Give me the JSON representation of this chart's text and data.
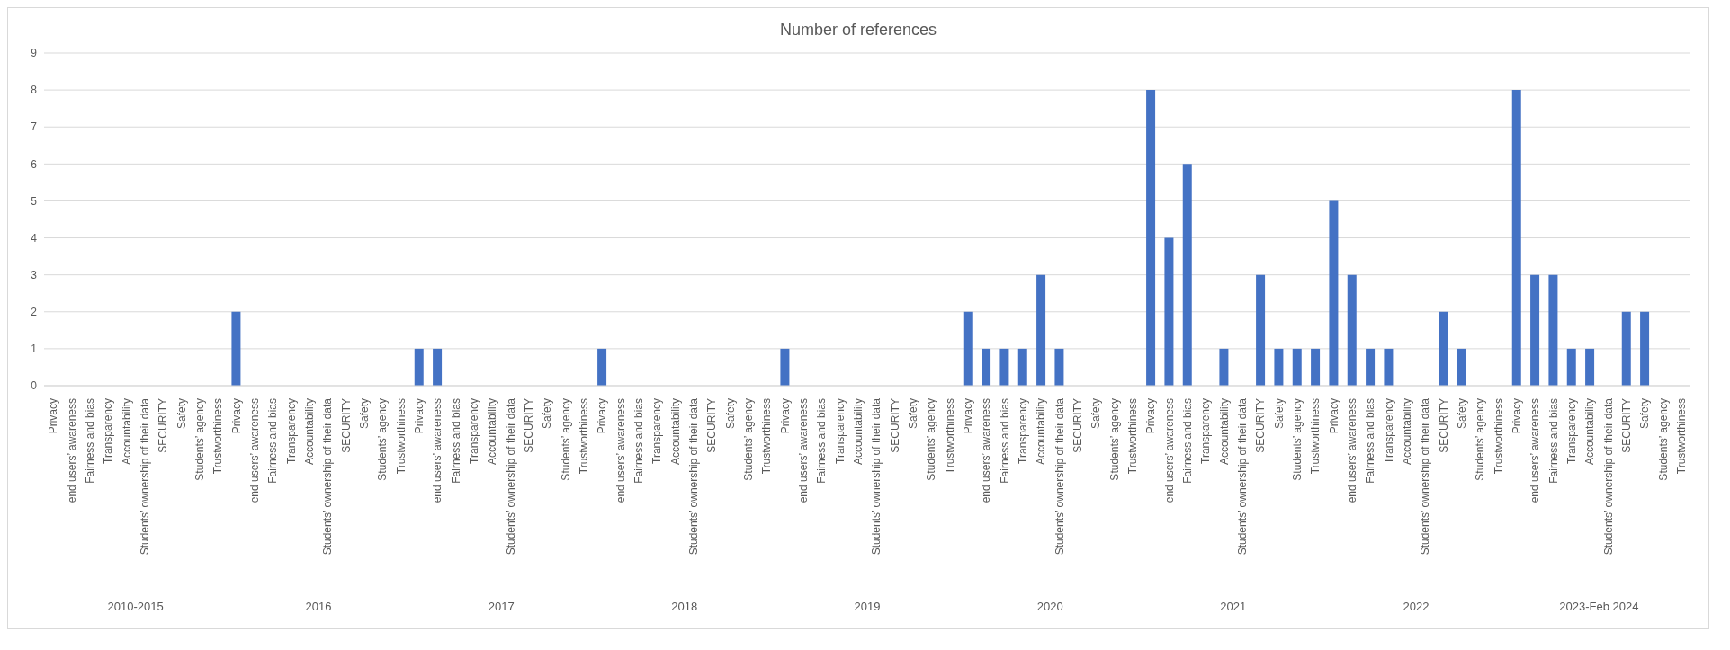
{
  "chart_data": {
    "type": "bar",
    "title": "Number of references",
    "categories": [
      "Privacy",
      "end users’ awareness",
      "Fairness and bias",
      "Transparency",
      "Accountability",
      "Students’ ownership of their data",
      "SECURITY",
      "Safety",
      "Students’ agency",
      "Trustworthiness",
      "Privacy",
      "end users’ awareness",
      "Fairness and bias",
      "Transparency",
      "Accountability",
      "Students’ ownership of their data",
      "SECURITY",
      "Safety",
      "Students’ agency",
      "Trustworthiness",
      "Privacy",
      "end users’ awareness",
      "Fairness and bias",
      "Transparency",
      "Accountability",
      "Students’ ownership of their data",
      "SECURITY",
      "Safety",
      "Students’ agency",
      "Trustworthiness",
      "Privacy",
      "end users’ awareness",
      "Fairness and bias",
      "Transparency",
      "Accountability",
      "Students’ ownership of their data",
      "SECURITY",
      "Safety",
      "Students’ agency",
      "Trustworthiness",
      "Privacy",
      "end users’ awareness",
      "Fairness and bias",
      "Transparency",
      "Accountability",
      "Students’ ownership of their data",
      "SECURITY",
      "Safety",
      "Students’ agency",
      "Trustworthiness",
      "Privacy",
      "end users’ awareness",
      "Fairness and bias",
      "Transparency",
      "Accountability",
      "Students’ ownership of their data",
      "SECURITY",
      "Safety",
      "Students’ agency",
      "Trustworthiness",
      "Privacy",
      "end users’ awareness",
      "Fairness and bias",
      "Transparency",
      "Accountability",
      "Students’ ownership of their data",
      "SECURITY",
      "Safety",
      "Students’ agency",
      "Trustworthiness",
      "Privacy",
      "end users’ awareness",
      "Fairness and bias",
      "Transparency",
      "Accountability",
      "Students’ ownership of their data",
      "SECURITY",
      "Safety",
      "Students’ agency",
      "Trustworthiness",
      "Privacy",
      "end users’ awareness",
      "Fairness and bias",
      "Transparency",
      "Accountability",
      "Students’ ownership of their data",
      "SECURITY",
      "Safety",
      "Students’ agency",
      "Trustworthiness"
    ],
    "values": [
      null,
      null,
      null,
      null,
      null,
      null,
      null,
      null,
      null,
      null,
      2,
      null,
      null,
      null,
      null,
      null,
      null,
      null,
      null,
      null,
      1,
      1,
      null,
      null,
      null,
      null,
      null,
      null,
      null,
      null,
      1,
      null,
      null,
      null,
      null,
      null,
      null,
      null,
      null,
      null,
      1,
      null,
      null,
      null,
      null,
      null,
      null,
      null,
      null,
      null,
      2,
      1,
      1,
      1,
      3,
      1,
      null,
      null,
      null,
      null,
      8,
      4,
      6,
      null,
      1,
      null,
      3,
      1,
      1,
      1,
      5,
      3,
      1,
      1,
      null,
      null,
      2,
      1,
      null,
      null,
      8,
      3,
      3,
      1,
      1,
      null,
      2,
      2,
      null,
      null
    ],
    "color": "#4472c4",
    "ylim": [
      0,
      9
    ],
    "yticks": [
      0,
      1,
      2,
      3,
      4,
      5,
      6,
      7,
      8,
      9
    ],
    "grid": "y",
    "annotations": [
      "2010-2015",
      "2016",
      "2017",
      "2018",
      "2019",
      "2020",
      "2021",
      "2022",
      "2023-Feb 2024"
    ]
  }
}
